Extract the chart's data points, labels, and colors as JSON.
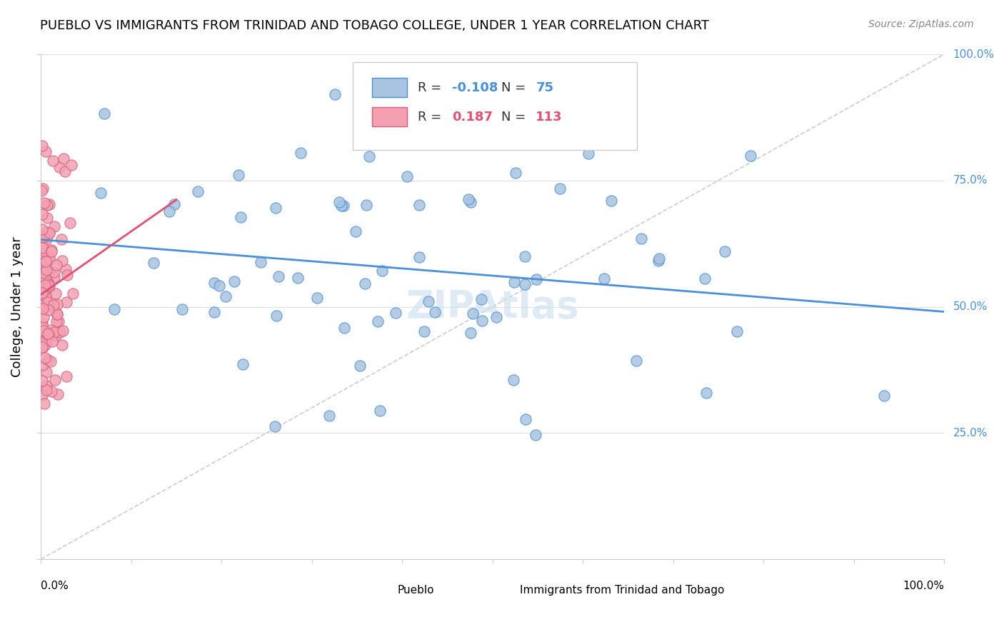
{
  "title": "PUEBLO VS IMMIGRANTS FROM TRINIDAD AND TOBAGO COLLEGE, UNDER 1 YEAR CORRELATION CHART",
  "source": "Source: ZipAtlas.com",
  "ylabel": "College, Under 1 year",
  "legend_blue_r": "-0.108",
  "legend_blue_n": "75",
  "legend_pink_r": "0.187",
  "legend_pink_n": "113",
  "blue_color": "#a8c4e0",
  "pink_color": "#f4a0b0",
  "blue_line_color": "#4a90d9",
  "pink_line_color": "#e05070",
  "ref_line_color": "#cccccc",
  "watermark_color": "#c8dff0"
}
